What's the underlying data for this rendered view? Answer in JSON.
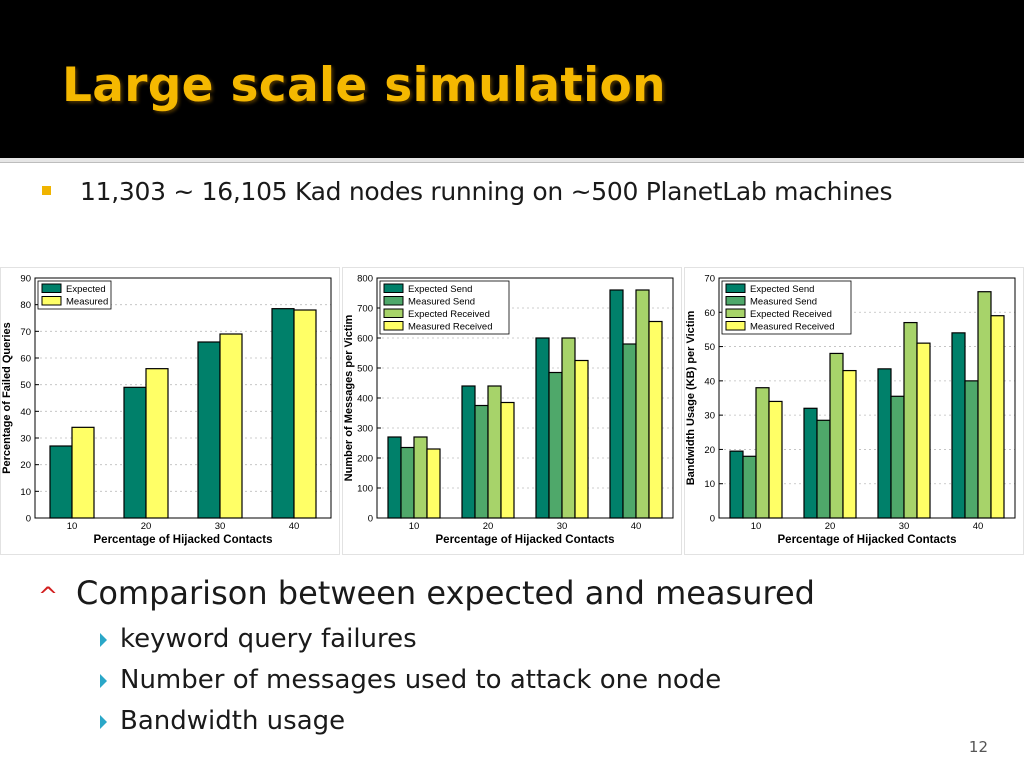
{
  "slide": {
    "title": "Large scale simulation",
    "bullet1": "11,303 ~ 16,105 Kad nodes running on ~500 PlanetLab machines",
    "section_marker": "^",
    "section_heading": "Comparison between expected and measured",
    "sub_bullets": [
      "keyword query failures",
      "Number of messages used to attack one node",
      "Bandwidth usage"
    ],
    "page_number": "12"
  },
  "colors": {
    "title": "#f5b800",
    "expected": "#00806a",
    "measured": "#ffff66",
    "expected_send": "#00806a",
    "measured_send": "#4fa86a",
    "expected_received": "#a7d36a",
    "measured_received": "#ffff66"
  },
  "chart_data": [
    {
      "type": "bar",
      "title": "",
      "xlabel": "Percentage of Hijacked Contacts",
      "ylabel": "Percentage of Failed Queries",
      "categories": [
        "10",
        "20",
        "30",
        "40"
      ],
      "ylim": [
        0,
        90
      ],
      "yticks": [
        0,
        10,
        20,
        30,
        40,
        50,
        60,
        70,
        80,
        90
      ],
      "grid": true,
      "legend": "top-left",
      "series": [
        {
          "name": "Expected",
          "color": "#00806a",
          "values": [
            27,
            49,
            66,
            78.5
          ]
        },
        {
          "name": "Measured",
          "color": "#ffff66",
          "values": [
            34,
            56,
            69,
            78
          ]
        }
      ]
    },
    {
      "type": "bar",
      "title": "",
      "xlabel": "Percentage of Hijacked Contacts",
      "ylabel": "Number of Messages per Victim",
      "categories": [
        "10",
        "20",
        "30",
        "40"
      ],
      "ylim": [
        0,
        800
      ],
      "yticks": [
        0,
        100,
        200,
        300,
        400,
        500,
        600,
        700,
        800
      ],
      "grid": true,
      "legend": "top-left",
      "series": [
        {
          "name": "Expected Send",
          "color": "#00806a",
          "values": [
            270,
            440,
            600,
            760
          ]
        },
        {
          "name": "Measured Send",
          "color": "#4fa86a",
          "values": [
            235,
            375,
            485,
            580
          ]
        },
        {
          "name": "Expected Received",
          "color": "#a7d36a",
          "values": [
            270,
            440,
            600,
            760
          ]
        },
        {
          "name": "Measured Received",
          "color": "#ffff66",
          "values": [
            230,
            385,
            525,
            655
          ]
        }
      ]
    },
    {
      "type": "bar",
      "title": "",
      "xlabel": "Percentage of Hijacked Contacts",
      "ylabel": "Bandwidth Usage (KB) per Victim",
      "categories": [
        "10",
        "20",
        "30",
        "40"
      ],
      "ylim": [
        0,
        70
      ],
      "yticks": [
        0,
        10,
        20,
        30,
        40,
        50,
        60,
        70
      ],
      "grid": true,
      "legend": "top-left",
      "series": [
        {
          "name": "Expected Send",
          "color": "#00806a",
          "values": [
            19.5,
            32,
            43.5,
            54
          ]
        },
        {
          "name": "Measured Send",
          "color": "#4fa86a",
          "values": [
            18,
            28.5,
            35.5,
            40
          ]
        },
        {
          "name": "Expected Received",
          "color": "#a7d36a",
          "values": [
            38,
            48,
            57,
            66
          ]
        },
        {
          "name": "Measured Received",
          "color": "#ffff66",
          "values": [
            34,
            43,
            51,
            59
          ]
        }
      ]
    }
  ]
}
